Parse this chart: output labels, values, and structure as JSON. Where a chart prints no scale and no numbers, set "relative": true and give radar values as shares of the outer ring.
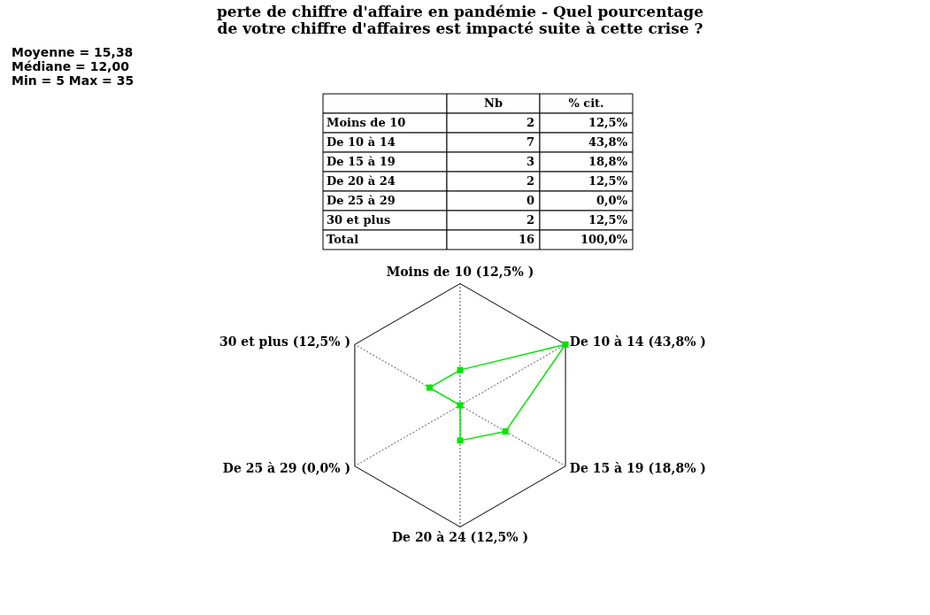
{
  "chart_data": [
    {
      "type": "other",
      "title": "perte de chiffre d'affaire en pandémie - Quel pourcentage de votre chiffre d'affaires est impacté suite à cette crise ?",
      "annotations": [
        "Moyenne = 15,38",
        "Médiane = 12,00",
        "Min = 5   Max = 35"
      ],
      "categories": [
        "Moins de 10",
        "De 10 à 14",
        "De 15 à 19",
        "De 20 à 24",
        "De 25 à 29",
        "30 et plus",
        "Total"
      ],
      "series": [
        {
          "name": "Nb",
          "values": [
            2,
            7,
            3,
            2,
            0,
            2,
            16
          ],
          "value_labels": [
            "2",
            "7",
            "3",
            "2",
            "0",
            "2",
            "16"
          ]
        },
        {
          "name": "% cit.",
          "values": [
            12.5,
            43.8,
            18.8,
            12.5,
            0,
            12.5,
            100
          ],
          "value_labels": [
            "12,5%",
            "43,8%",
            "18,8%",
            "12,5%",
            "0,0%",
            "12,5%",
            "100,0%"
          ]
        }
      ]
    },
    {
      "type": "radar",
      "relative": true,
      "grid": true,
      "marker": "square",
      "categories": [
        "Moins de 10 (12,5% )",
        "De 10 à 14 (43,8% )",
        "De 15 à 19 (18,8% )",
        "De 20 à 24 (12,5% )",
        "De 25 à 29 (0,0% )",
        "30 et plus (12,5% )"
      ],
      "series": [
        {
          "color": "#00e600",
          "values": [
            0.29,
            1,
            0.43,
            0.29,
            0,
            0.29
          ]
        }
      ]
    }
  ]
}
